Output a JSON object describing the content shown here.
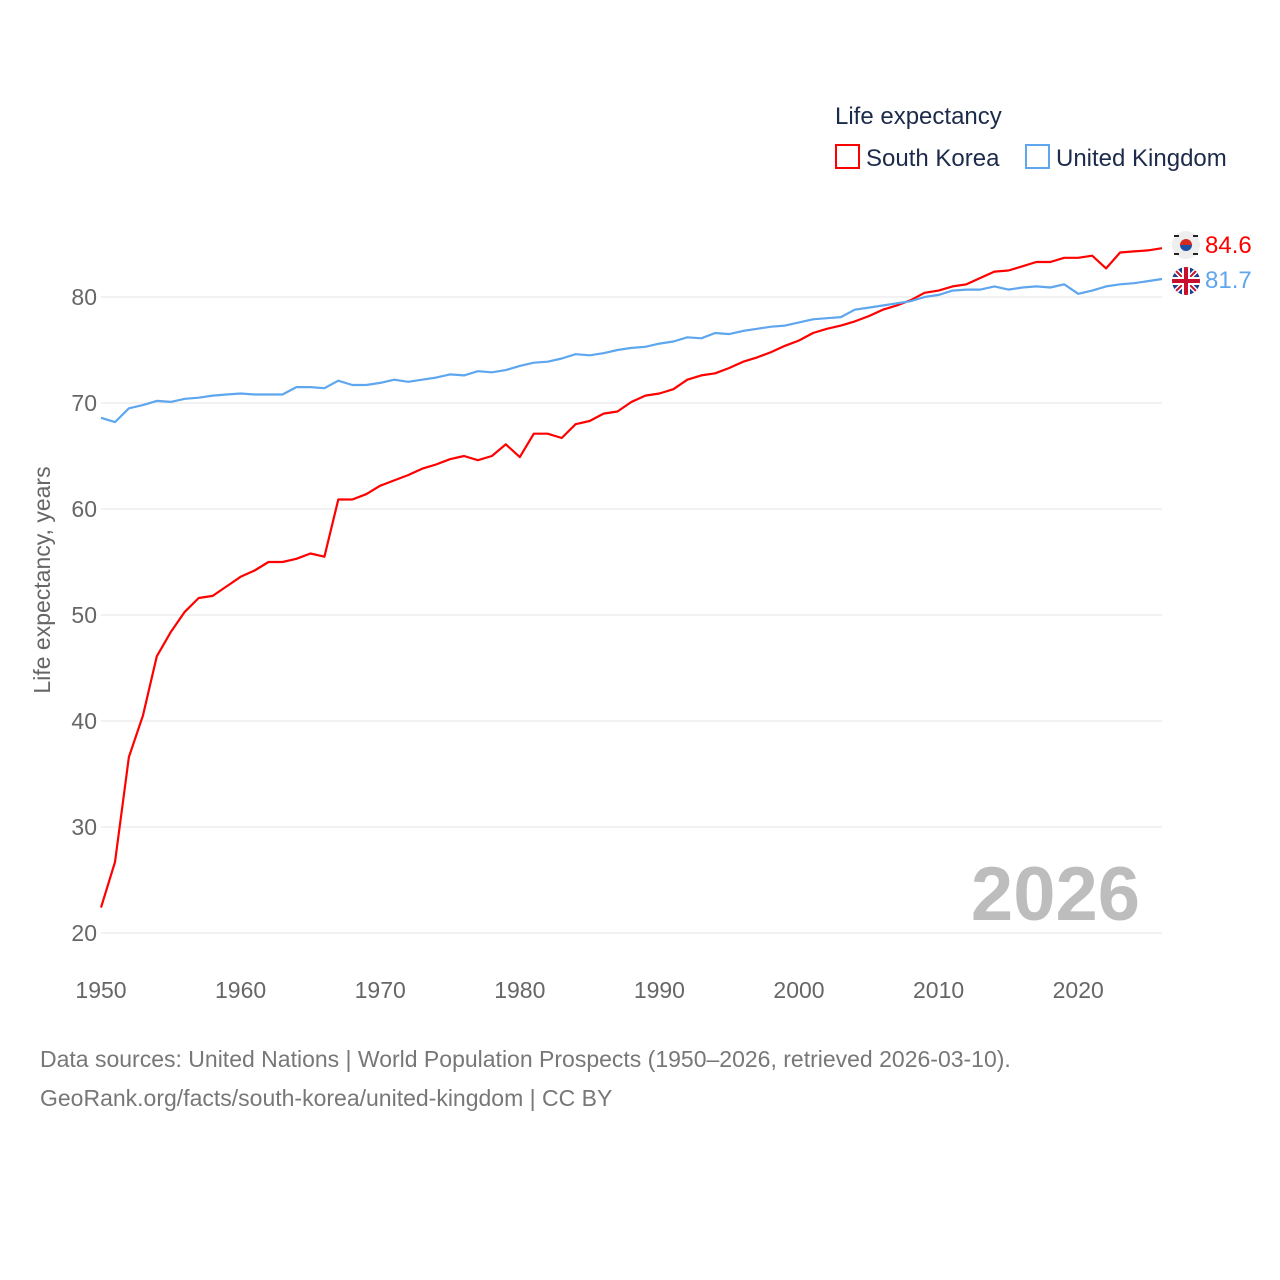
{
  "chart_data": {
    "type": "line",
    "title": "",
    "xlabel": "",
    "ylabel": "Life expectancy, years",
    "xlim": [
      1950,
      2026
    ],
    "ylim": [
      20,
      85
    ],
    "xticks": [
      "1950",
      "1960",
      "1970",
      "1980",
      "1990",
      "2000",
      "2010",
      "2020"
    ],
    "yticks": [
      "20",
      "30",
      "40",
      "50",
      "60",
      "70",
      "80"
    ],
    "grid": true,
    "legend": {
      "title": "Life expectancy",
      "placement": "top-right"
    },
    "year_label": "2026",
    "x": [
      1950,
      1951,
      1952,
      1953,
      1954,
      1955,
      1956,
      1957,
      1958,
      1959,
      1960,
      1961,
      1962,
      1963,
      1964,
      1965,
      1966,
      1967,
      1968,
      1969,
      1970,
      1971,
      1972,
      1973,
      1974,
      1975,
      1976,
      1977,
      1978,
      1979,
      1980,
      1981,
      1982,
      1983,
      1984,
      1985,
      1986,
      1987,
      1988,
      1989,
      1990,
      1991,
      1992,
      1993,
      1994,
      1995,
      1996,
      1997,
      1998,
      1999,
      2000,
      2001,
      2002,
      2003,
      2004,
      2005,
      2006,
      2007,
      2008,
      2009,
      2010,
      2011,
      2012,
      2013,
      2014,
      2015,
      2016,
      2017,
      2018,
      2019,
      2020,
      2021,
      2022,
      2023,
      2024,
      2025,
      2026
    ],
    "series": [
      {
        "name": "South Korea",
        "color": "#ff0000",
        "end_label": "84.6",
        "values": [
          22.4,
          26.7,
          36.6,
          40.5,
          46.1,
          48.4,
          50.3,
          51.6,
          51.8,
          52.7,
          53.6,
          54.2,
          55.0,
          55.0,
          55.3,
          55.8,
          55.5,
          60.9,
          60.9,
          61.4,
          62.2,
          62.7,
          63.2,
          63.8,
          64.2,
          64.7,
          65.0,
          64.6,
          65.0,
          66.1,
          64.9,
          67.1,
          67.1,
          66.7,
          68.0,
          68.3,
          69.0,
          69.2,
          70.1,
          70.7,
          70.9,
          71.3,
          72.2,
          72.6,
          72.8,
          73.3,
          73.9,
          74.3,
          74.8,
          75.4,
          75.9,
          76.6,
          77.0,
          77.3,
          77.7,
          78.2,
          78.8,
          79.2,
          79.7,
          80.4,
          80.6,
          81.0,
          81.2,
          81.8,
          82.4,
          82.5,
          82.9,
          83.3,
          83.3,
          83.7,
          83.7,
          83.9,
          82.7,
          84.2,
          84.3,
          84.4,
          84.6
        ]
      },
      {
        "name": "United Kingdom",
        "color": "#5ea6ee",
        "end_label": "81.7",
        "values": [
          68.6,
          68.2,
          69.5,
          69.8,
          70.2,
          70.1,
          70.4,
          70.5,
          70.7,
          70.8,
          70.9,
          70.8,
          70.8,
          70.8,
          71.5,
          71.5,
          71.4,
          72.1,
          71.7,
          71.7,
          71.9,
          72.2,
          72.0,
          72.2,
          72.4,
          72.7,
          72.6,
          73.0,
          72.9,
          73.1,
          73.5,
          73.8,
          73.9,
          74.2,
          74.6,
          74.5,
          74.7,
          75.0,
          75.2,
          75.3,
          75.6,
          75.8,
          76.2,
          76.1,
          76.6,
          76.5,
          76.8,
          77.0,
          77.2,
          77.3,
          77.6,
          77.9,
          78.0,
          78.1,
          78.8,
          79.0,
          79.2,
          79.4,
          79.6,
          80.0,
          80.2,
          80.6,
          80.7,
          80.7,
          81.0,
          80.7,
          80.9,
          81.0,
          80.9,
          81.2,
          80.3,
          80.6,
          81.0,
          81.2,
          81.3,
          81.5,
          81.7
        ]
      }
    ]
  },
  "footer": {
    "line1": "Data sources: United Nations | World Population Prospects (1950–2026, retrieved 2026-03-10).",
    "line2": "GeoRank.org/facts/south-korea/united-kingdom | CC BY"
  }
}
